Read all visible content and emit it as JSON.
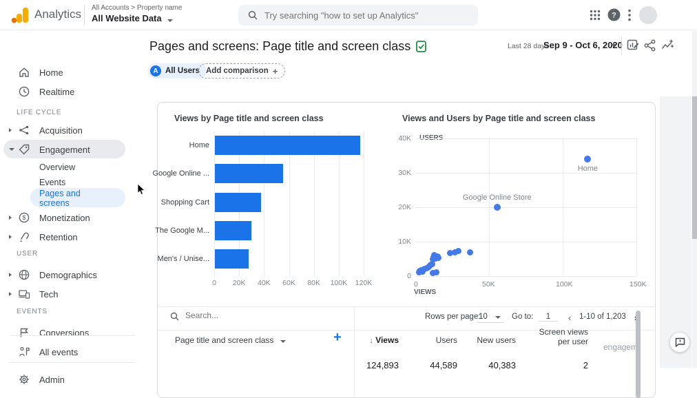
{
  "topbar": {
    "product": "Analytics",
    "breadcrumb": "All Accounts > Property name",
    "property_selector": "All Website Data",
    "search_placeholder": "Try searching \"how to set up Analytics\""
  },
  "sidebar": {
    "home": "Home",
    "realtime": "Realtime",
    "life_cycle_section": "LIFE CYCLE",
    "acquisition": "Acquisition",
    "engagement": "Engagement",
    "overview": "Overview",
    "events": "Events",
    "pages_and_screens_line1": "Pages and",
    "pages_and_screens_line2": "screens",
    "monetization": "Monetization",
    "retention": "Retention",
    "user_section": "USER",
    "demographics": "Demographics",
    "tech": "Tech",
    "events_section": "EVENTS",
    "conversions": "Conversions",
    "all_events": "All events",
    "admin": "Admin"
  },
  "report_header": {
    "title": "Pages and screens: Page title and screen class",
    "all_users_badge": "A",
    "all_users_chip": "All Users",
    "add_comparison_chip": "Add comparison",
    "add_comparison_plus": "+",
    "date_preset": "Last 28 days",
    "date_range": "Sep 9 - Oct 6, 2020"
  },
  "chart_data": [
    {
      "type": "bar",
      "orientation": "horizontal",
      "title": "Views by Page title and screen class",
      "categories": [
        "Home",
        "Google Online ...",
        "Shopping Cart",
        "The Google M...",
        "Men's / Unise..."
      ],
      "values": [
        116500,
        55000,
        37000,
        29500,
        27000
      ],
      "xlabel": "Views",
      "xlim": [
        0,
        120000
      ],
      "x_ticks": [
        "0",
        "20K",
        "40K",
        "60K",
        "80K",
        "100K",
        "120K"
      ],
      "bar_color": "#1a73e8",
      "grid": true
    },
    {
      "type": "scatter",
      "title": "Views and Users by Page title and screen class",
      "xlabel": "VIEWS",
      "ylabel": "USERS",
      "xlim": [
        0,
        150000
      ],
      "ylim": [
        0,
        40000
      ],
      "x_ticks": [
        "0",
        "50K",
        "100K",
        "150K"
      ],
      "y_ticks": [
        "0",
        "10K",
        "20K",
        "30K",
        "40K"
      ],
      "point_color": "#4379e8",
      "grid": true,
      "labeled_points": [
        {
          "label": "Home",
          "x": 117000,
          "y": 34000,
          "label_position": "below"
        },
        {
          "label": "Google Online Store",
          "x": 55500,
          "y": 20000,
          "label_position": "above"
        }
      ],
      "points": [
        [
          2500,
          1200
        ],
        [
          3200,
          1500
        ],
        [
          4000,
          1800
        ],
        [
          4800,
          1400
        ],
        [
          5500,
          2000
        ],
        [
          6500,
          2200
        ],
        [
          7500,
          2400
        ],
        [
          8500,
          2600
        ],
        [
          9500,
          3000
        ],
        [
          10500,
          3400
        ],
        [
          11500,
          3600
        ],
        [
          12000,
          4900
        ],
        [
          12500,
          5600
        ],
        [
          13000,
          6200
        ],
        [
          14000,
          5200
        ],
        [
          15000,
          5800
        ],
        [
          15500,
          5400
        ],
        [
          11800,
          900
        ],
        [
          14200,
          1200
        ],
        [
          23400,
          6800
        ],
        [
          26800,
          7000
        ],
        [
          29300,
          7400
        ],
        [
          37100,
          7000
        ]
      ]
    }
  ],
  "table": {
    "search_placeholder": "Search...",
    "pagination": {
      "rows_per_page_label": "Rows per page:",
      "rows_per_page": "10",
      "goto_label": "Go to:",
      "goto_value": "1",
      "range": "1-10 of 1,203",
      "prev": "‹",
      "next": "›"
    },
    "dimension_header": "Page title and screen class",
    "add_column": "+",
    "sort_arrow": "↓",
    "metric_columns": [
      "Views",
      "Users",
      "New users",
      "Screen views per user",
      "engagem"
    ],
    "totals_row": [
      "124,893",
      "44,589",
      "40,383",
      "2"
    ]
  },
  "colors": {
    "accent": "#1a73e8",
    "bar": "#1a73e8",
    "scatter_dot": "#4379e8",
    "selected_nav_bg": "#e8f0fe",
    "logo_amber": "#f9ab00",
    "logo_orange": "#e37400",
    "verified_green": "#1e8e3e"
  }
}
